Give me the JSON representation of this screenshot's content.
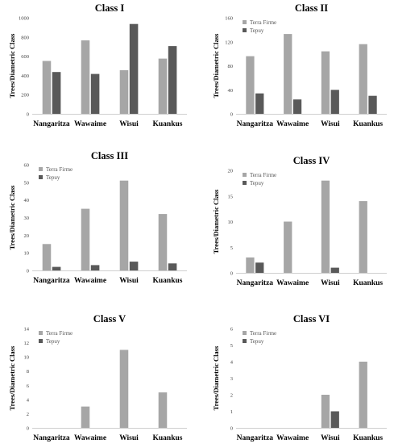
{
  "colors": {
    "terra_firme": "#a6a6a6",
    "tepuy": "#595959"
  },
  "ylabel": "Trees/Diametric Class",
  "chart_data": [
    {
      "type": "bar",
      "title": "Class I",
      "categories": [
        "Nangaritza",
        "Wawaime",
        "Wisui",
        "Kuankus"
      ],
      "series": [
        {
          "name": "Terra Firme",
          "values": [
            550,
            765,
            455,
            575
          ]
        },
        {
          "name": "Tepuy",
          "values": [
            435,
            415,
            935,
            705
          ]
        }
      ],
      "ylim": [
        0,
        1000
      ],
      "yticks": [
        0,
        200,
        400,
        600,
        800,
        1000
      ],
      "legend": false
    },
    {
      "type": "bar",
      "title": "Class II",
      "categories": [
        "Nangaritza",
        "Wawaime",
        "Wisui",
        "Kuankus"
      ],
      "series": [
        {
          "name": "Terra Firme",
          "values": [
            96,
            133,
            104,
            116
          ]
        },
        {
          "name": "Tepuy",
          "values": [
            34,
            24,
            40,
            30
          ]
        }
      ],
      "ylim": [
        0,
        160
      ],
      "yticks": [
        0,
        40,
        80,
        120,
        160
      ],
      "legend": "top-left"
    },
    {
      "type": "bar",
      "title": "Class III",
      "categories": [
        "Nangaritza",
        "Wawaime",
        "Wisui",
        "Kuankus"
      ],
      "series": [
        {
          "name": "Terra Firme",
          "values": [
            15,
            35,
            51,
            32
          ]
        },
        {
          "name": "Tepuy",
          "values": [
            2,
            3,
            5,
            4
          ]
        }
      ],
      "ylim": [
        0,
        60
      ],
      "yticks": [
        0,
        10,
        20,
        30,
        40,
        50,
        60
      ],
      "legend": "top-left"
    },
    {
      "type": "bar",
      "title": "Class IV",
      "categories": [
        "Nangaritza",
        "Wawaime",
        "Wisui",
        "Kuankus"
      ],
      "series": [
        {
          "name": "Terra Firme",
          "values": [
            3,
            10,
            18,
            14
          ]
        },
        {
          "name": "Tepuy",
          "values": [
            2,
            0,
            1,
            0
          ]
        }
      ],
      "ylim": [
        0,
        20
      ],
      "yticks": [
        0,
        5,
        10,
        15,
        20
      ],
      "legend": "top-left"
    },
    {
      "type": "bar",
      "title": "Class V",
      "categories": [
        "Nangaritza",
        "Wawaime",
        "Wisui",
        "Kuankus"
      ],
      "series": [
        {
          "name": "Terra Firme",
          "values": [
            0,
            3,
            11,
            5
          ]
        },
        {
          "name": "Tepuy",
          "values": [
            0,
            0,
            0,
            0
          ]
        }
      ],
      "ylim": [
        0,
        14
      ],
      "yticks": [
        0,
        2,
        4,
        6,
        8,
        10,
        12,
        14
      ],
      "legend": "top-left"
    },
    {
      "type": "bar",
      "title": "Class VI",
      "categories": [
        "Nangaritza",
        "Wawaime",
        "Wisui",
        "Kuankus"
      ],
      "series": [
        {
          "name": "Terra Firme",
          "values": [
            0,
            0,
            2,
            4
          ]
        },
        {
          "name": "Tepuy",
          "values": [
            0,
            0,
            1,
            0
          ]
        }
      ],
      "ylim": [
        0,
        6
      ],
      "yticks": [
        0,
        1,
        2,
        3,
        4,
        5,
        6
      ],
      "legend": "top-left"
    }
  ]
}
